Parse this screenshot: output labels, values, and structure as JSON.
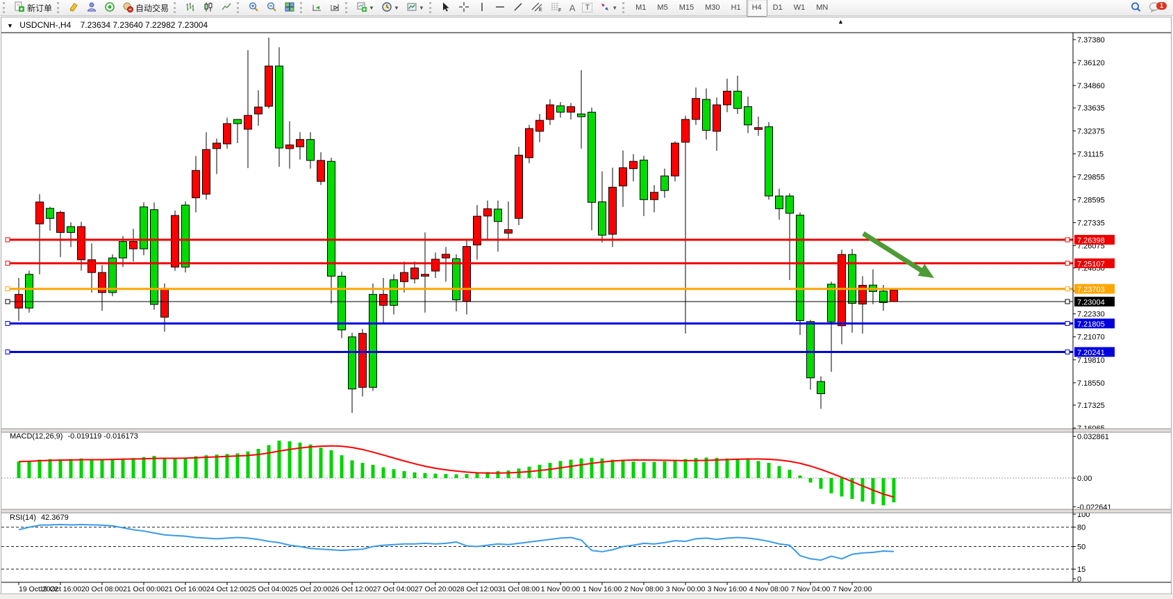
{
  "toolbar": {
    "new_order": "新订单",
    "autotrading": "自动交易",
    "timeframes": [
      "M1",
      "M5",
      "M15",
      "M30",
      "H1",
      "H4",
      "D1",
      "W1",
      "MN"
    ],
    "active_timeframe": "H4",
    "tool_letters": {
      "text": "A",
      "label": "T",
      "channel": "E",
      "fibonacci": "F"
    },
    "chat_badge": "1"
  },
  "chart": {
    "symbol_period": "USDCNH-,H4",
    "ohlc_quote": "7.23634 7.23640 7.22982 7.23004"
  },
  "price_axis": {
    "ticks": [
      "7.37380",
      "7.36120",
      "7.34860",
      "7.33635",
      "7.32375",
      "7.31115",
      "7.29855",
      "7.28595",
      "7.27335",
      "7.26075",
      "7.24850",
      "7.23590",
      "7.22330",
      "7.21070",
      "7.19810",
      "7.18550",
      "7.17325",
      "7.16065"
    ]
  },
  "levels": [
    {
      "label": "7.26398",
      "value": 7.26398,
      "color": "#ee0000",
      "width": 3
    },
    {
      "label": "7.25107",
      "value": 7.25107,
      "color": "#ee0000",
      "width": 3
    },
    {
      "label": "7.23703",
      "value": 7.23703,
      "color": "#ffa500",
      "width": 3
    },
    {
      "label": "7.23004",
      "value": 7.23004,
      "color": "#000000",
      "width": 1
    },
    {
      "label": "7.21805",
      "value": 7.21805,
      "color": "#0000dd",
      "width": 3
    },
    {
      "label": "7.20241",
      "value": 7.20241,
      "color": "#0000dd",
      "width": 3
    }
  ],
  "time_axis": {
    "labels": [
      "19 Oct 2022",
      "19 Oct 16:00",
      "20 Oct 08:00",
      "21 Oct 00:00",
      "21 Oct 16:00",
      "24 Oct 12:00",
      "25 Oct 04:00",
      "25 Oct 20:00",
      "26 Oct 12:00",
      "27 Oct 04:00",
      "27 Oct 20:00",
      "28 Oct 12:00",
      "31 Oct 08:00",
      "1 Nov 00:00",
      "1 Nov 16:00",
      "2 Nov 08:00",
      "3 Nov 00:00",
      "3 Nov 16:00",
      "4 Nov 08:00",
      "7 Nov 04:00",
      "7 Nov 20:00"
    ]
  },
  "indicators": {
    "macd": {
      "name": "MACD(12,26,9)",
      "values": "-0.019119 -0.016173",
      "axis": [
        {
          "text": "0.032861",
          "v": 32.861
        },
        {
          "text": "0.00",
          "v": 0
        },
        {
          "text": "-0.022641",
          "v": -22.641
        }
      ]
    },
    "rsi": {
      "name": "RSI(14)",
      "value": "42.3679",
      "axis": [
        {
          "text": "100",
          "v": 100
        },
        {
          "text": "80",
          "v": 80
        },
        {
          "text": "50",
          "v": 50
        },
        {
          "text": "15",
          "v": 15
        },
        {
          "text": "0",
          "v": 0
        }
      ],
      "levels": [
        80,
        50,
        15
      ]
    }
  },
  "colors": {
    "bull": "#00db00",
    "bear": "#ff0000",
    "candle_border": "#000000",
    "macd_hist": "#00d300",
    "macd_signal": "#ff0000",
    "rsi_line": "#3a9ae8",
    "arrow": "#4d9b35"
  },
  "chart_data": {
    "type": "candlestick",
    "symbol": "USDCNH",
    "timeframe": "H4",
    "visible_price_range": [
      7.16065,
      7.3776
    ],
    "candles": [
      [
        7.234,
        7.243,
        7.2195,
        7.2265
      ],
      [
        7.2265,
        7.247,
        7.224,
        7.245
      ],
      [
        7.2847,
        7.289,
        7.245,
        7.2727
      ],
      [
        7.2757,
        7.282,
        7.269,
        7.2812
      ],
      [
        7.279,
        7.28,
        7.2545,
        7.268
      ],
      [
        7.268,
        7.2735,
        7.26,
        7.2712
      ],
      [
        7.2712,
        7.2738,
        7.247,
        7.253
      ],
      [
        7.253,
        7.262,
        7.235,
        7.246
      ],
      [
        7.246,
        7.25,
        7.225,
        7.235
      ],
      [
        7.235,
        7.256,
        7.233,
        7.254
      ],
      [
        7.254,
        7.266,
        7.249,
        7.263
      ],
      [
        7.263,
        7.27,
        7.252,
        7.259
      ],
      [
        7.259,
        7.2845,
        7.2555,
        7.282
      ],
      [
        7.2285,
        7.2845,
        7.2255,
        7.2805
      ],
      [
        7.237,
        7.24,
        7.2135,
        7.2215
      ],
      [
        7.2773,
        7.28,
        7.2469,
        7.249
      ],
      [
        7.249,
        7.285,
        7.246,
        7.283
      ],
      [
        7.302,
        7.31,
        7.279,
        7.287
      ],
      [
        7.3135,
        7.323,
        7.286,
        7.289
      ],
      [
        7.317,
        7.3195,
        7.3,
        7.314
      ],
      [
        7.3277,
        7.331,
        7.314,
        7.3166
      ],
      [
        7.3277,
        7.33,
        7.317,
        7.33
      ],
      [
        7.3322,
        7.368,
        7.3033,
        7.3246
      ],
      [
        7.3368,
        7.346,
        7.3265,
        7.333
      ],
      [
        7.3593,
        7.3749,
        7.336,
        7.3372
      ],
      [
        7.3143,
        7.3696,
        7.304,
        7.3593
      ],
      [
        7.316,
        7.329,
        7.303,
        7.314
      ],
      [
        7.319,
        7.323,
        7.308,
        7.315
      ],
      [
        7.3075,
        7.323,
        7.303,
        7.319
      ],
      [
        7.3075,
        7.312,
        7.294,
        7.296
      ],
      [
        7.244,
        7.309,
        7.229,
        7.307
      ],
      [
        7.2145,
        7.2465,
        7.21,
        7.244
      ],
      [
        7.1821,
        7.213,
        7.169,
        7.2107
      ],
      [
        7.2126,
        7.215,
        7.178,
        7.183
      ],
      [
        7.183,
        7.24,
        7.181,
        7.234
      ],
      [
        7.234,
        7.243,
        7.218,
        7.228
      ],
      [
        7.228,
        7.245,
        7.223,
        7.242
      ],
      [
        7.246,
        7.252,
        7.235,
        7.241
      ],
      [
        7.2485,
        7.252,
        7.24,
        7.2425
      ],
      [
        7.245,
        7.268,
        7.224,
        7.244
      ],
      [
        7.2533,
        7.257,
        7.243,
        7.2468
      ],
      [
        7.256,
        7.26,
        7.241,
        7.254
      ],
      [
        7.231,
        7.256,
        7.2247,
        7.2536
      ],
      [
        7.2603,
        7.264,
        7.223,
        7.2302
      ],
      [
        7.2769,
        7.283,
        7.253,
        7.2611
      ],
      [
        7.281,
        7.2855,
        7.264,
        7.277
      ],
      [
        7.274,
        7.2855,
        7.2575,
        7.2808
      ],
      [
        7.2695,
        7.285,
        7.264,
        7.2676
      ],
      [
        7.3104,
        7.315,
        7.272,
        7.2757
      ],
      [
        7.325,
        7.327,
        7.306,
        7.309
      ],
      [
        7.3295,
        7.333,
        7.3175,
        7.3235
      ],
      [
        7.338,
        7.341,
        7.327,
        7.33
      ],
      [
        7.334,
        7.3395,
        7.331,
        7.3375
      ],
      [
        7.337,
        7.339,
        7.33,
        7.334
      ],
      [
        7.3315,
        7.357,
        7.314,
        7.333
      ],
      [
        7.2845,
        7.3365,
        7.2692,
        7.334
      ],
      [
        7.2665,
        7.3015,
        7.2625,
        7.2848
      ],
      [
        7.2928,
        7.3035,
        7.26,
        7.267
      ],
      [
        7.3035,
        7.313,
        7.282,
        7.2935
      ],
      [
        7.307,
        7.311,
        7.296,
        7.303
      ],
      [
        7.286,
        7.31,
        7.277,
        7.3077
      ],
      [
        7.29,
        7.294,
        7.279,
        7.286
      ],
      [
        7.291,
        7.303,
        7.287,
        7.299
      ],
      [
        7.317,
        7.318,
        7.296,
        7.299
      ],
      [
        7.33,
        7.332,
        7.2125,
        7.3175
      ],
      [
        7.3415,
        7.3475,
        7.327,
        7.33
      ],
      [
        7.324,
        7.347,
        7.319,
        7.341
      ],
      [
        7.338,
        7.342,
        7.3128,
        7.3235
      ],
      [
        7.3455,
        7.3524,
        7.334,
        7.338
      ],
      [
        7.336,
        7.354,
        7.333,
        7.3455
      ],
      [
        7.327,
        7.3425,
        7.3225,
        7.337
      ],
      [
        7.3255,
        7.3315,
        7.321,
        7.3245
      ],
      [
        7.288,
        7.3285,
        7.286,
        7.326
      ],
      [
        7.281,
        7.292,
        7.275,
        7.288
      ],
      [
        7.2785,
        7.2895,
        7.2418,
        7.288
      ],
      [
        7.2196,
        7.279,
        7.2117,
        7.2775
      ],
      [
        7.1882,
        7.22,
        7.1817,
        7.2191
      ],
      [
        7.1795,
        7.189,
        7.1712,
        7.1862
      ],
      [
        7.219,
        7.241,
        7.1915,
        7.2396
      ],
      [
        7.2559,
        7.2585,
        7.2066,
        7.2168
      ],
      [
        7.2291,
        7.259,
        7.213,
        7.2559
      ],
      [
        7.239,
        7.244,
        7.2125,
        7.2287
      ],
      [
        7.2356,
        7.2478,
        7.2286,
        7.2391
      ],
      [
        7.2295,
        7.2392,
        7.225,
        7.2358
      ],
      [
        7.23634,
        7.2364,
        7.22982,
        7.23004
      ]
    ],
    "macd_histogram_x1000": [
      13,
      13.5,
      14.5,
      15,
      14.8,
      15,
      15.5,
      15,
      14.2,
      14.8,
      15.5,
      15.8,
      16.5,
      17.5,
      16,
      15.2,
      16,
      17.2,
      18,
      18.5,
      19,
      19.5,
      21,
      23,
      26,
      29.5,
      29,
      28,
      26.5,
      24,
      22,
      18,
      14,
      12,
      10.5,
      8.5,
      7,
      5.5,
      4.5,
      4,
      3.5,
      3.2,
      3,
      3.2,
      4,
      4.8,
      5.5,
      6,
      7.5,
      9,
      10.5,
      12,
      13.5,
      14.5,
      15.5,
      16,
      15.5,
      14.5,
      13.5,
      13,
      12.5,
      12.8,
      13.2,
      14,
      15,
      15.8,
      16.2,
      16,
      15.5,
      15.2,
      14.5,
      13.5,
      12,
      9.5,
      6.5,
      2,
      -3.5,
      -8.5,
      -12,
      -14.5,
      -16.5,
      -18.5,
      -20.5,
      -21.5,
      -19.119
    ],
    "rsi_values": [
      76,
      80,
      83,
      83.5,
      84,
      83.5,
      84,
      83.5,
      83,
      82,
      79,
      76,
      74,
      71,
      68,
      67,
      66,
      64,
      63,
      62,
      63,
      64,
      63,
      61,
      58,
      56,
      52,
      50,
      47,
      46,
      45,
      44,
      45,
      46,
      50,
      52,
      53,
      54,
      54,
      55,
      54,
      55,
      57,
      51,
      50,
      52,
      54,
      53,
      55,
      57,
      59,
      61,
      63,
      64,
      60,
      44,
      42,
      45,
      50,
      52,
      55,
      54,
      56,
      59,
      58,
      62,
      63,
      61,
      63,
      64,
      63,
      61,
      58,
      54,
      52,
      36,
      31,
      29,
      35,
      31,
      38,
      40,
      41,
      43,
      42.37
    ]
  }
}
